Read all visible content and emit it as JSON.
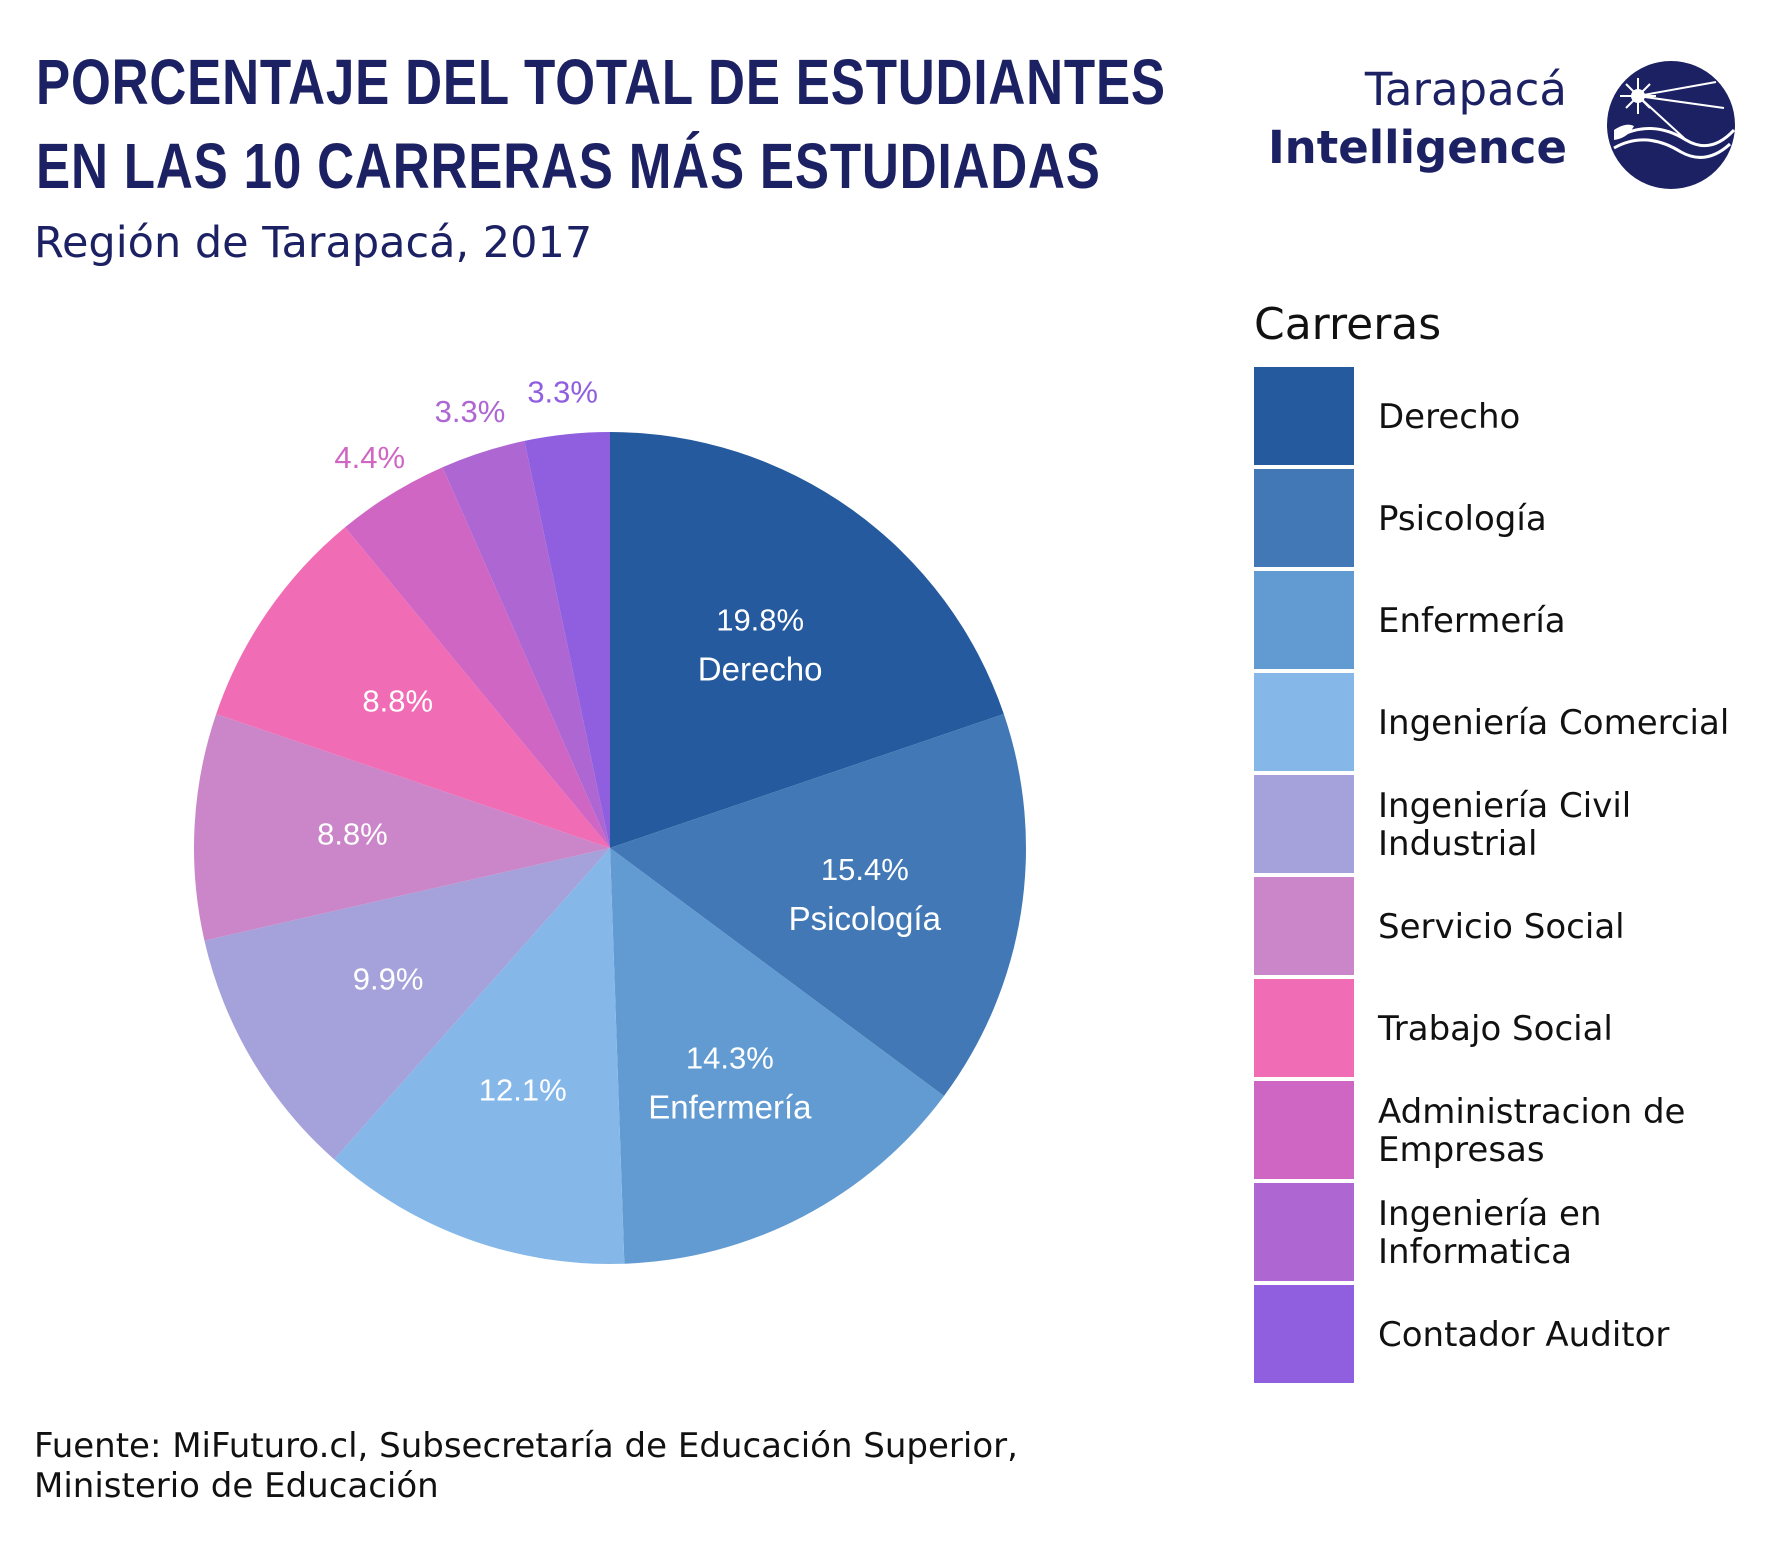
{
  "title_lines": [
    "PORCENTAJE DEL TOTAL DE ESTUDIANTES",
    "EN LAS 10 CARRERAS MÁS ESTUDIADAS"
  ],
  "subtitle": "Región de Tarapacá, 2017",
  "logo": {
    "line1": "Tarapacá",
    "line2": "Intelligence",
    "color": "#1c2163"
  },
  "legend_title": "Carreras",
  "source_lines": [
    "Fuente: MiFuturo.cl, Subsecretaría de Educación Superior,",
    "Ministerio de Educación"
  ],
  "chart_data": {
    "type": "pie",
    "title": "PORCENTAJE DEL TOTAL DE ESTUDIANTES EN LAS 10 CARRERAS MÁS ESTUDIADAS",
    "subtitle": "Región de Tarapacá, 2017",
    "legend_title": "Carreras",
    "legend_position": "right",
    "start": "top, clockwise",
    "slices": [
      {
        "label": "Derecho",
        "value": 19.8,
        "value_label": "19.8%",
        "slice_name": "Derecho",
        "color": "#255a9e"
      },
      {
        "label": "Psicología",
        "value": 15.4,
        "value_label": "15.4%",
        "slice_name": "Psicología",
        "color": "#4278b6"
      },
      {
        "label": "Enfermería",
        "value": 14.3,
        "value_label": "14.3%",
        "slice_name": "Enfermería",
        "color": "#629bd1"
      },
      {
        "label": "Ingeniería Comercial",
        "value": 12.1,
        "value_label": "12.1%",
        "slice_name": "",
        "color": "#85b8e9"
      },
      {
        "label": "Ingeniería Civil Industrial",
        "value": 9.9,
        "value_label": "9.9%",
        "slice_name": "",
        "color": "#a5a1da"
      },
      {
        "label": "Servicio Social",
        "value": 8.8,
        "value_label": "8.8%",
        "slice_name": "",
        "color": "#ca86c8"
      },
      {
        "label": "Trabajo Social",
        "value": 8.8,
        "value_label": "8.8%",
        "slice_name": "",
        "color": "#f06db6"
      },
      {
        "label": "Administracion de Empresas",
        "value": 4.4,
        "value_label": "4.4%",
        "slice_name": "",
        "color": "#d066c4"
      },
      {
        "label": "Ingeniería en Informatica",
        "value": 3.3,
        "value_label": "3.3%",
        "slice_name": "",
        "color": "#ae66d2"
      },
      {
        "label": "Contador Auditor",
        "value": 3.3,
        "value_label": "3.3%",
        "slice_name": "",
        "color": "#905fe0"
      }
    ]
  }
}
